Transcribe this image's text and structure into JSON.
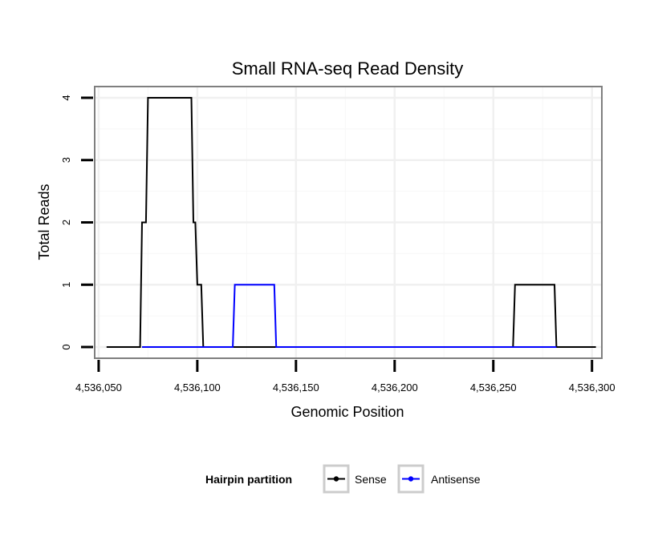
{
  "chart_data": {
    "type": "line",
    "title": "Small RNA-seq Read Density",
    "xlabel": "Genomic Position",
    "ylabel": "Total Reads",
    "xlim": [
      4536048,
      4536305
    ],
    "ylim": [
      -0.18,
      4.18
    ],
    "x_ticks": [
      4536050,
      4536100,
      4536150,
      4536200,
      4536250,
      4536300
    ],
    "x_tick_labels": [
      "4,536,050",
      "4,536,100",
      "4,536,150",
      "4,536,200",
      "4,536,250",
      "4,536,300"
    ],
    "y_ticks": [
      0,
      1,
      2,
      3,
      4
    ],
    "y_tick_labels": [
      "0",
      "1",
      "2",
      "3",
      "4"
    ],
    "grid": true,
    "legend": {
      "title": "Hairpin partition",
      "position": "bottom"
    },
    "series": [
      {
        "name": "Sense",
        "color": "#000000",
        "x": [
          4536054,
          4536071,
          4536072,
          4536073,
          4536074,
          4536075,
          4536097,
          4536098,
          4536099,
          4536100,
          4536101,
          4536102,
          4536103,
          4536120,
          4536140,
          4536260,
          4536261,
          4536281,
          4536282,
          4536302
        ],
        "y": [
          0,
          0,
          2,
          2,
          2,
          4,
          4,
          2,
          2,
          1,
          1,
          1,
          0,
          0,
          0,
          0,
          1,
          1,
          0,
          0
        ]
      },
      {
        "name": "Antisense",
        "color": "#0000ff",
        "x": [
          4536072,
          4536103,
          4536118,
          4536119,
          4536139,
          4536140,
          4536260,
          4536282
        ],
        "y": [
          0,
          0,
          0,
          1,
          1,
          0,
          0,
          0
        ]
      }
    ]
  }
}
